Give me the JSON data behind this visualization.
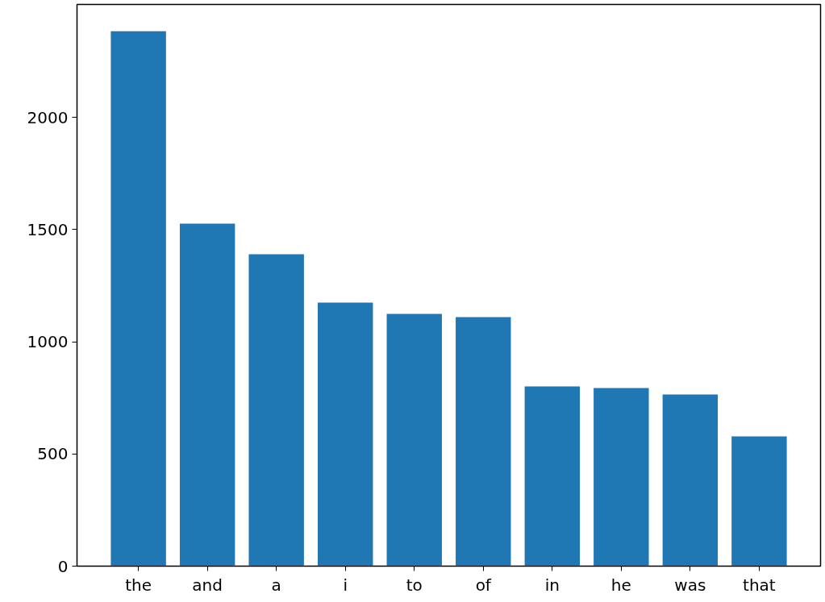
{
  "chart_data": {
    "type": "bar",
    "categories": [
      "the",
      "and",
      "a",
      "i",
      "to",
      "of",
      "in",
      "he",
      "was",
      "that"
    ],
    "values": [
      2384,
      1526,
      1390,
      1174,
      1124,
      1110,
      801,
      794,
      765,
      578
    ],
    "color": "#1f77b4",
    "ylim": [
      0,
      2503
    ],
    "yticks": [
      0,
      500,
      1000,
      1500,
      2000
    ],
    "grid": false
  }
}
